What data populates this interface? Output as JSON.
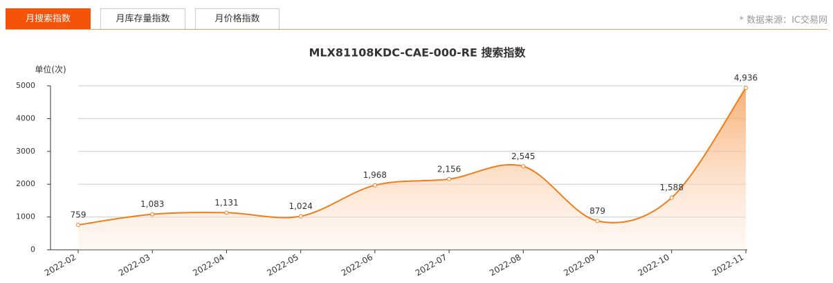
{
  "tabs": [
    "月搜索指数",
    "月库存量指数",
    "月价格指数"
  ],
  "source": "* 数据来源：IC交易网",
  "chart_data": {
    "type": "line",
    "title": "MLX81108KDC-CAE-000-RE 搜索指数",
    "y_label": "单位(次)",
    "categories": [
      "2022-02",
      "2022-03",
      "2022-04",
      "2022-05",
      "2022-06",
      "2022-07",
      "2022-08",
      "2022-09",
      "2022-10",
      "2022-11"
    ],
    "values": [
      759,
      1083,
      1131,
      1024,
      1968,
      2156,
      2545,
      879,
      1588,
      4936
    ],
    "value_labels": [
      "759",
      "1,083",
      "1,131",
      "1,024",
      "1,968",
      "2,156",
      "2,545",
      "879",
      "1,588",
      "4,936"
    ],
    "color": "#f07c1a",
    "ylim": [
      0,
      5000
    ],
    "yticks": [
      0,
      1000,
      2000,
      3000,
      4000,
      5000
    ],
    "grid": true,
    "smooth": true
  }
}
